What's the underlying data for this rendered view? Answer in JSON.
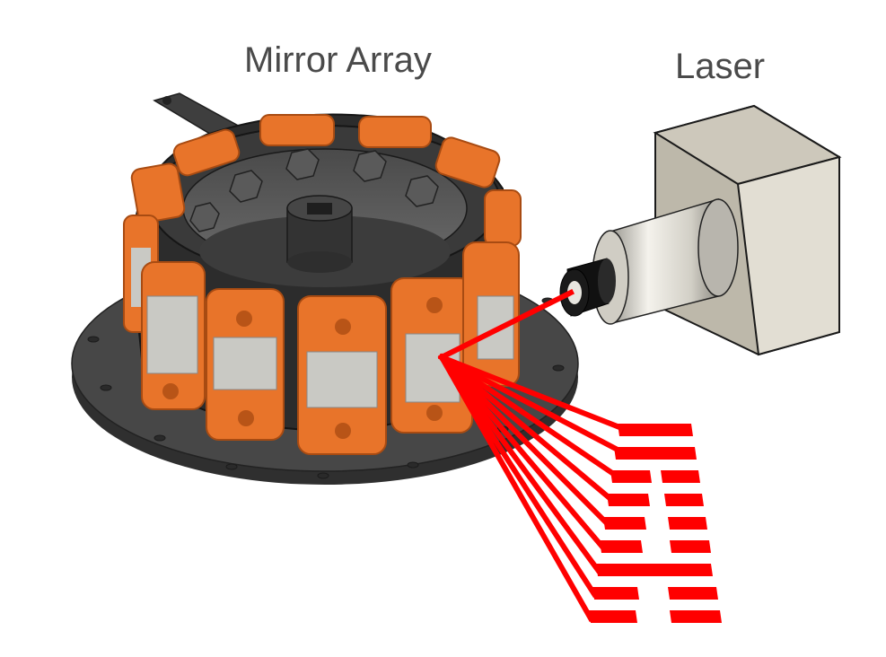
{
  "labels": {
    "mirror_array": "Mirror Array",
    "laser": "Laser"
  },
  "colors": {
    "background": "#ffffff",
    "label_text": "#4a4a4a",
    "housing_orange": "#e8742a",
    "housing_orange_dark": "#b85417",
    "mirror_gray": "#c9c9c4",
    "base_dark": "#3a3a3a",
    "ring_dark": "#2e2e2e",
    "laser_body": "#dcdad2",
    "laser_box": "#d6d1c4",
    "beam_red": "#ff0000"
  },
  "icons": [
    "mirror-array-assembly",
    "laser-module",
    "reflected-beams",
    "projected-letter-pattern"
  ]
}
